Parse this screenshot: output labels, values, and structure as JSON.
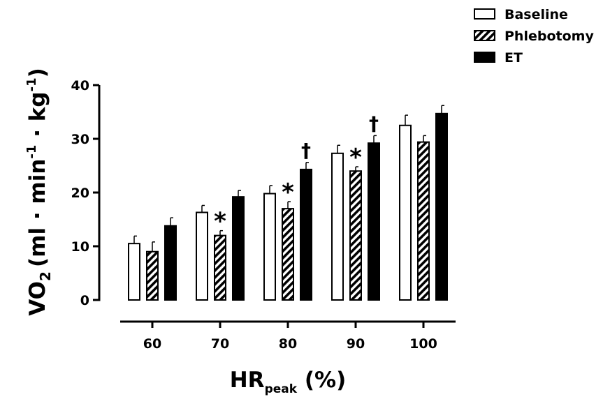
{
  "chart_data": {
    "type": "bar",
    "title": "",
    "categories": [
      "60",
      "70",
      "80",
      "90",
      "100"
    ],
    "series": [
      {
        "name": "Baseline",
        "pattern": "open",
        "values": [
          10.5,
          16.3,
          19.8,
          27.3,
          32.5
        ],
        "errors": [
          1.4,
          1.3,
          1.5,
          1.5,
          1.9
        ]
      },
      {
        "name": "Phlebotomy",
        "pattern": "hatched",
        "values": [
          9.0,
          12.0,
          17.0,
          24.0,
          29.4
        ],
        "errors": [
          1.8,
          0.9,
          1.3,
          0.8,
          1.2
        ]
      },
      {
        "name": "ET",
        "pattern": "solid",
        "values": [
          13.8,
          19.2,
          24.3,
          29.2,
          34.7
        ],
        "errors": [
          1.5,
          1.2,
          1.3,
          1.4,
          1.5
        ]
      }
    ],
    "annotations": [
      {
        "text": "*",
        "category": "70",
        "series": "Phlebotomy"
      },
      {
        "text": "*",
        "category": "80",
        "series": "Phlebotomy"
      },
      {
        "text": "*",
        "category": "90",
        "series": "Phlebotomy"
      },
      {
        "text": "†",
        "category": "80",
        "series": "ET"
      },
      {
        "text": "†",
        "category": "90",
        "series": "ET"
      }
    ],
    "ylim": [
      0,
      40
    ],
    "yticks": [
      0,
      10,
      20,
      30,
      40
    ],
    "ylabel": {
      "main": "VO",
      "sub": "2",
      "units": "(ml · min",
      "sup1": "-1",
      "mid": " · kg",
      "sup2": "-1",
      "close": ")"
    },
    "xlabel": {
      "main": "HR",
      "sub": "peak",
      "units": " (%)"
    },
    "legend_position": "top-right",
    "colors": {
      "ink": "#000000",
      "open_fill": "#ffffff"
    }
  }
}
